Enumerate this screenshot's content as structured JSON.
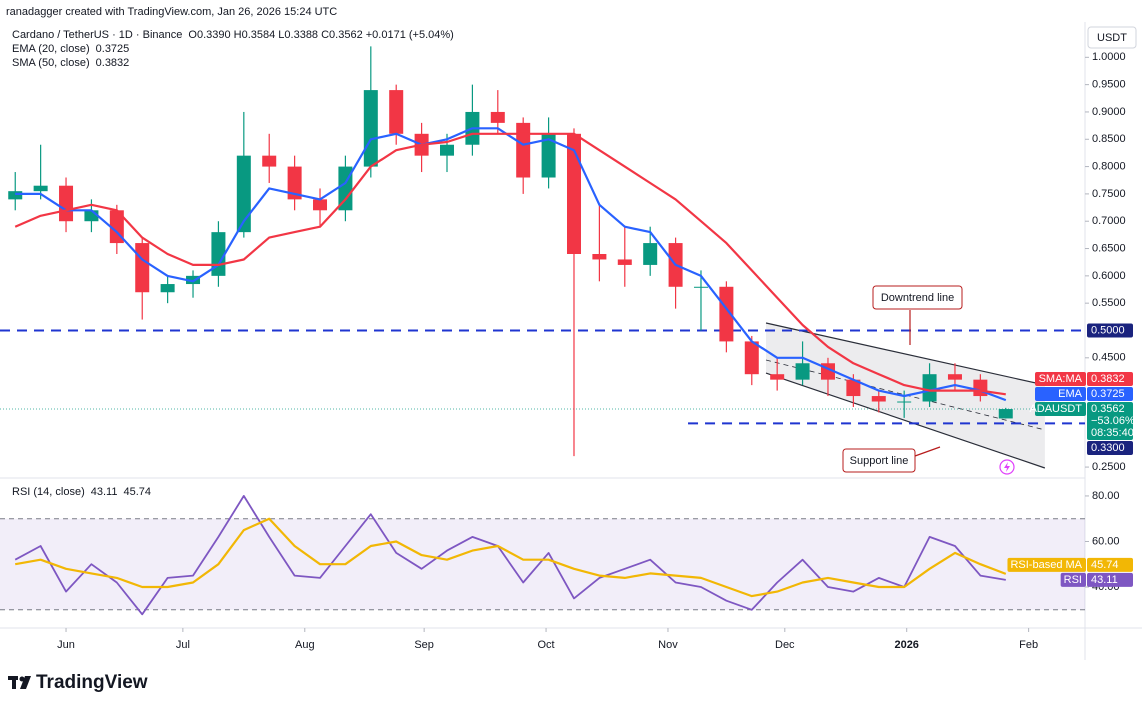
{
  "header": {
    "credit": "ranadagger created with TradingView.com, Jan 26, 2026 15:24 UTC",
    "watermark": "TradingView"
  },
  "chart_data": [
    {
      "type": "candlestick",
      "title": "Cardano / TetherUS · 1D · Binance",
      "ohlc_text": "O0.3390 H0.3584 L0.3388 C0.3562 +0.0171 (+5.04%)",
      "currency": "USDT",
      "symbol": "ADAUSDT",
      "change_label": "−53.06%",
      "countdown": "08:35:40",
      "up_color": "#089981",
      "down_color": "#f23645",
      "open": [
        0.74,
        0.755,
        0.765,
        0.7,
        0.72,
        0.66,
        0.57,
        0.585,
        0.6,
        0.68,
        0.82,
        0.8,
        0.74,
        0.72,
        0.8,
        0.94,
        0.86,
        0.82,
        0.84,
        0.9,
        0.88,
        0.78,
        0.86,
        0.64,
        0.63,
        0.62,
        0.66,
        0.58,
        0.58,
        0.48,
        0.42,
        0.41,
        0.44,
        0.41,
        0.38,
        0.37,
        0.37,
        0.42,
        0.41,
        0.339
      ],
      "high": [
        0.79,
        0.84,
        0.78,
        0.74,
        0.73,
        0.67,
        0.6,
        0.61,
        0.7,
        0.9,
        0.86,
        0.82,
        0.76,
        0.82,
        1.02,
        0.95,
        0.88,
        0.86,
        0.95,
        0.94,
        0.89,
        0.89,
        0.87,
        0.73,
        0.69,
        0.69,
        0.67,
        0.61,
        0.59,
        0.49,
        0.45,
        0.48,
        0.45,
        0.42,
        0.39,
        0.39,
        0.44,
        0.44,
        0.42,
        0.3584
      ],
      "low": [
        0.72,
        0.74,
        0.68,
        0.68,
        0.64,
        0.52,
        0.55,
        0.56,
        0.58,
        0.67,
        0.77,
        0.72,
        0.69,
        0.7,
        0.78,
        0.84,
        0.79,
        0.79,
        0.82,
        0.86,
        0.75,
        0.76,
        0.27,
        0.59,
        0.58,
        0.6,
        0.54,
        0.5,
        0.46,
        0.4,
        0.39,
        0.4,
        0.38,
        0.36,
        0.35,
        0.34,
        0.36,
        0.39,
        0.37,
        0.3388
      ],
      "close": [
        0.755,
        0.765,
        0.7,
        0.72,
        0.66,
        0.57,
        0.585,
        0.6,
        0.68,
        0.82,
        0.8,
        0.74,
        0.72,
        0.8,
        0.94,
        0.86,
        0.82,
        0.84,
        0.9,
        0.88,
        0.78,
        0.86,
        0.64,
        0.63,
        0.62,
        0.66,
        0.58,
        0.58,
        0.48,
        0.42,
        0.41,
        0.44,
        0.41,
        0.38,
        0.37,
        0.37,
        0.42,
        0.41,
        0.38,
        0.3562
      ],
      "series": [
        {
          "name": "EMA (20, close)",
          "tag": "EMA",
          "color": "#2962ff",
          "values": [
            0.75,
            0.75,
            0.72,
            0.72,
            0.68,
            0.63,
            0.6,
            0.59,
            0.62,
            0.7,
            0.76,
            0.75,
            0.74,
            0.77,
            0.85,
            0.86,
            0.84,
            0.85,
            0.87,
            0.87,
            0.84,
            0.85,
            0.83,
            0.73,
            0.69,
            0.68,
            0.62,
            0.6,
            0.54,
            0.48,
            0.45,
            0.45,
            0.43,
            0.41,
            0.39,
            0.38,
            0.39,
            0.4,
            0.39,
            0.3725
          ]
        },
        {
          "name": "SMA (50, close)",
          "tag": "SMA:MA",
          "color": "#f23645",
          "values": [
            0.69,
            0.71,
            0.72,
            0.73,
            0.72,
            0.67,
            0.64,
            0.62,
            0.62,
            0.63,
            0.67,
            0.68,
            0.69,
            0.74,
            0.8,
            0.83,
            0.84,
            0.845,
            0.86,
            0.86,
            0.86,
            0.86,
            0.86,
            0.83,
            0.8,
            0.77,
            0.74,
            0.7,
            0.66,
            0.61,
            0.56,
            0.51,
            0.47,
            0.44,
            0.42,
            0.4,
            0.39,
            0.39,
            0.39,
            0.3832
          ]
        }
      ],
      "xlim": [
        -0.6,
        42.12
      ],
      "xticks": [
        {
          "value": 2.0,
          "label": "Jun"
        },
        {
          "value": 6.6,
          "label": "Jul"
        },
        {
          "value": 11.4,
          "label": "Aug"
        },
        {
          "value": 16.1,
          "label": "Sep"
        },
        {
          "value": 20.9,
          "label": "Oct"
        },
        {
          "value": 25.7,
          "label": "Nov"
        },
        {
          "value": 30.3,
          "label": "Dec"
        },
        {
          "value": 35.1,
          "label": "2026"
        },
        {
          "value": 39.9,
          "label": "Feb"
        }
      ],
      "ylim": [
        0.23,
        1.05
      ],
      "yticks": [
        {
          "value": 1.0,
          "label": "1.0000"
        },
        {
          "value": 0.95,
          "label": "0.9500"
        },
        {
          "value": 0.9,
          "label": "0.9000"
        },
        {
          "value": 0.85,
          "label": "0.8500"
        },
        {
          "value": 0.8,
          "label": "0.8000"
        },
        {
          "value": 0.75,
          "label": "0.7500"
        },
        {
          "value": 0.7,
          "label": "0.7000"
        },
        {
          "value": 0.65,
          "label": "0.6500"
        },
        {
          "value": 0.6,
          "label": "0.6000"
        },
        {
          "value": 0.55,
          "label": "0.5500"
        },
        {
          "value": 0.45,
          "label": "0.4500"
        },
        {
          "value": 0.25,
          "label": "0.2500"
        }
      ],
      "levels": [
        {
          "value": 0.5,
          "label": "0.5000",
          "from": -0.6,
          "color": "#1f35d0"
        },
        {
          "value": 0.33,
          "label": "0.3300",
          "from": 26.49,
          "color": "#1f35d0"
        }
      ],
      "channel": {
        "x": [
          29.56,
          40.54
        ],
        "upper": [
          0.5137,
          0.4002
        ],
        "middle": [
          0.446,
          0.318
        ],
        "lower": [
          0.422,
          0.2483
        ]
      },
      "annotations": [
        {
          "text": "Downtrend line"
        },
        {
          "text": "Support line"
        }
      ]
    },
    {
      "type": "line",
      "title": "RSI (14, close)",
      "series": [
        {
          "name": "RSI",
          "color": "#7e57c2",
          "values": [
            52,
            58,
            38,
            50,
            42,
            28,
            44,
            45,
            62,
            80,
            62,
            45,
            44,
            58,
            72,
            55,
            48,
            56,
            62,
            58,
            42,
            55,
            35,
            44,
            48,
            52,
            42,
            40,
            34,
            30,
            42,
            52,
            40,
            38,
            44,
            40,
            62,
            58,
            45,
            43.11
          ]
        },
        {
          "name": "RSI-based MA",
          "color": "#f2b705",
          "values": [
            50,
            52,
            48,
            46,
            44,
            40,
            40,
            42,
            50,
            65,
            70,
            58,
            50,
            50,
            58,
            60,
            54,
            52,
            56,
            58,
            52,
            52,
            48,
            45,
            44,
            46,
            45,
            44,
            40,
            36,
            38,
            42,
            44,
            42,
            40,
            40,
            48,
            55,
            50,
            45.74
          ]
        }
      ],
      "ylim": [
        22,
        87
      ],
      "yticks": [
        {
          "value": 80,
          "label": "80.00"
        },
        {
          "value": 60,
          "label": "60.00"
        },
        {
          "value": 40,
          "label": "40.00"
        }
      ],
      "bands": [
        30,
        70
      ]
    }
  ]
}
